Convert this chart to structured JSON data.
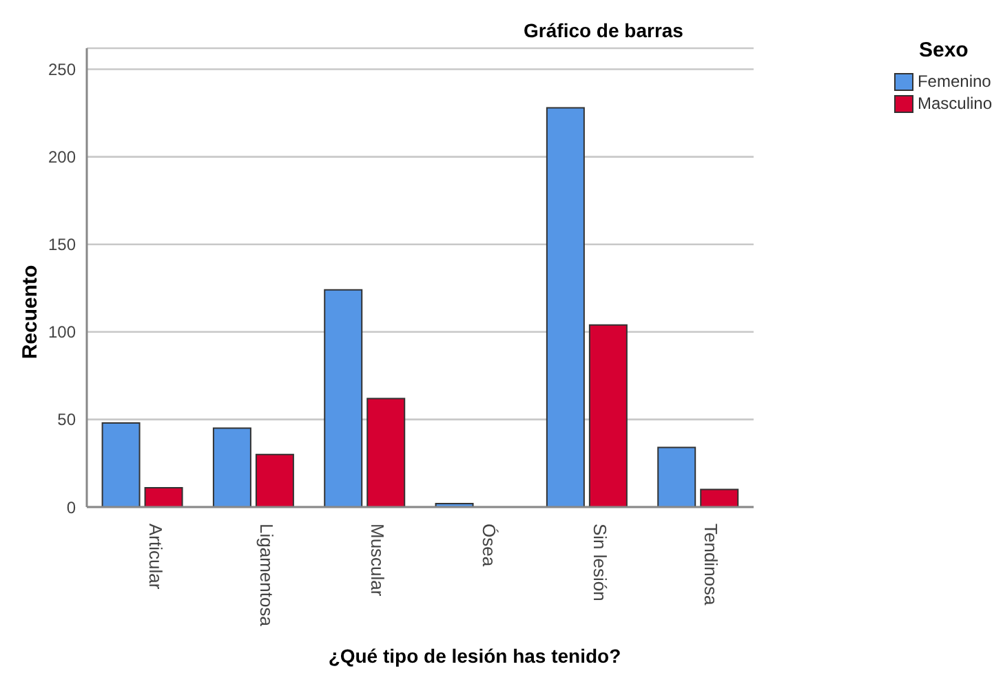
{
  "chart_data": {
    "type": "bar",
    "title": "Gráfico de barras",
    "xlabel": "¿Qué tipo de lesión has tenido?",
    "ylabel": "Recuento",
    "legend_title": "Sexo",
    "categories": [
      "Articular",
      "Ligamentosa",
      "Muscular",
      "Ósea",
      "Sin lesión",
      "Tendinosa"
    ],
    "series": [
      {
        "name": "Femenino",
        "color": "#5596e6",
        "values": [
          48,
          45,
          124,
          2,
          228,
          34
        ]
      },
      {
        "name": "Masculino",
        "color": "#d60032",
        "values": [
          11,
          30,
          62,
          0,
          104,
          10
        ]
      }
    ],
    "ylim": [
      0,
      262
    ],
    "yticks": [
      0,
      50,
      100,
      150,
      200,
      250
    ],
    "grid": "y",
    "legend": "top right"
  }
}
